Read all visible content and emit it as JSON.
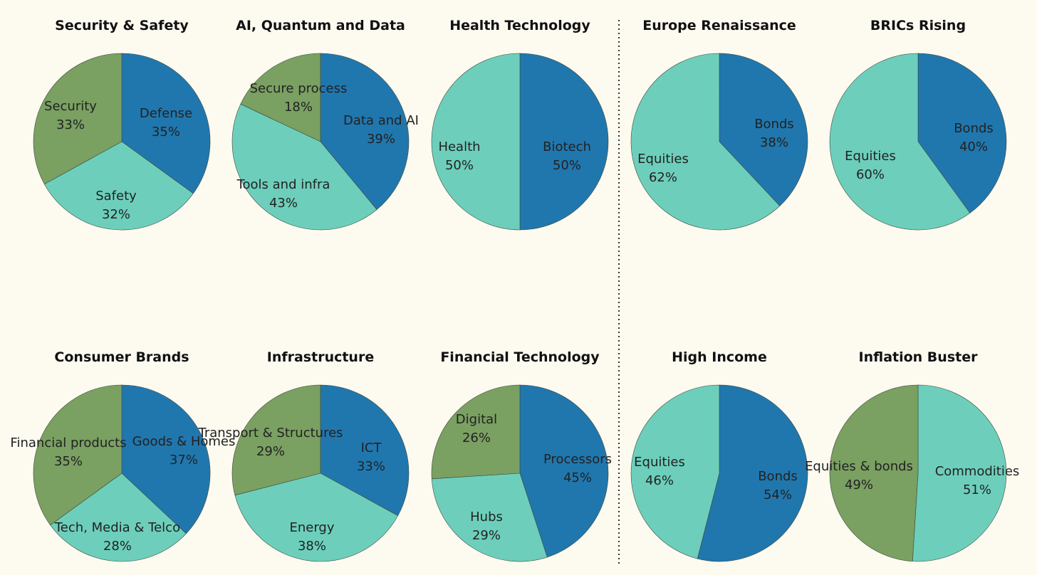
{
  "colors": {
    "background": "#fdfaf0",
    "dark_blue": "#2077ae",
    "teal": "#6dcfbb",
    "green": "#7aa062",
    "slice_edge": "#3c4a3c"
  },
  "chart_data": [
    {
      "type": "pie",
      "title": "Security & Safety",
      "slices": [
        {
          "label": "Defense",
          "value": 35,
          "pct": "35%",
          "color": "#2077ae"
        },
        {
          "label": "Safety",
          "value": 32,
          "pct": "32%",
          "color": "#6dcfbb"
        },
        {
          "label": "Security",
          "value": 33,
          "pct": "33%",
          "color": "#7aa062"
        }
      ]
    },
    {
      "type": "pie",
      "title": "AI, Quantum and Data",
      "slices": [
        {
          "label": "Data and AI",
          "value": 39,
          "pct": "39%",
          "color": "#2077ae"
        },
        {
          "label": "Tools and infra",
          "value": 43,
          "pct": "43%",
          "color": "#6dcfbb"
        },
        {
          "label": "Secure process",
          "value": 18,
          "pct": "18%",
          "color": "#7aa062"
        }
      ]
    },
    {
      "type": "pie",
      "title": "Health Technology",
      "slices": [
        {
          "label": "Biotech",
          "value": 50,
          "pct": "50%",
          "color": "#2077ae"
        },
        {
          "label": "Health",
          "value": 50,
          "pct": "50%",
          "color": "#6dcfbb"
        }
      ]
    },
    {
      "type": "pie",
      "title": "Europe Renaissance",
      "slices": [
        {
          "label": "Bonds",
          "value": 38,
          "pct": "38%",
          "color": "#2077ae"
        },
        {
          "label": "Equities",
          "value": 62,
          "pct": "62%",
          "color": "#6dcfbb"
        }
      ]
    },
    {
      "type": "pie",
      "title": "BRICs Rising",
      "slices": [
        {
          "label": "Bonds",
          "value": 40,
          "pct": "40%",
          "color": "#2077ae"
        },
        {
          "label": "Equities",
          "value": 60,
          "pct": "60%",
          "color": "#6dcfbb"
        }
      ]
    },
    {
      "type": "pie",
      "title": "Consumer Brands",
      "slices": [
        {
          "label": "Goods & Homes",
          "value": 37,
          "pct": "37%",
          "color": "#2077ae"
        },
        {
          "label": "Tech, Media & Telco",
          "value": 28,
          "pct": "28%",
          "color": "#6dcfbb"
        },
        {
          "label": "Financial products",
          "value": 35,
          "pct": "35%",
          "color": "#7aa062"
        }
      ]
    },
    {
      "type": "pie",
      "title": "Infrastructure",
      "slices": [
        {
          "label": "ICT",
          "value": 33,
          "pct": "33%",
          "color": "#2077ae"
        },
        {
          "label": "Energy",
          "value": 38,
          "pct": "38%",
          "color": "#6dcfbb"
        },
        {
          "label": "Transport & Structures",
          "value": 29,
          "pct": "29%",
          "color": "#7aa062"
        }
      ]
    },
    {
      "type": "pie",
      "title": "Financial Technology",
      "slices": [
        {
          "label": "Processors",
          "value": 45,
          "pct": "45%",
          "color": "#2077ae"
        },
        {
          "label": "Hubs",
          "value": 29,
          "pct": "29%",
          "color": "#6dcfbb"
        },
        {
          "label": "Digital",
          "value": 26,
          "pct": "26%",
          "color": "#7aa062"
        }
      ]
    },
    {
      "type": "pie",
      "title": "High Income",
      "slices": [
        {
          "label": "Bonds",
          "value": 54,
          "pct": "54%",
          "color": "#2077ae"
        },
        {
          "label": "Equities",
          "value": 46,
          "pct": "46%",
          "color": "#6dcfbb"
        }
      ]
    },
    {
      "type": "pie",
      "title": "Inflation Buster",
      "slices": [
        {
          "label": "Commodities",
          "value": 51,
          "pct": "51%",
          "color": "#6dcfbb"
        },
        {
          "label": "Equities & bonds",
          "value": 49,
          "pct": "49%",
          "color": "#7aa062"
        }
      ]
    }
  ]
}
